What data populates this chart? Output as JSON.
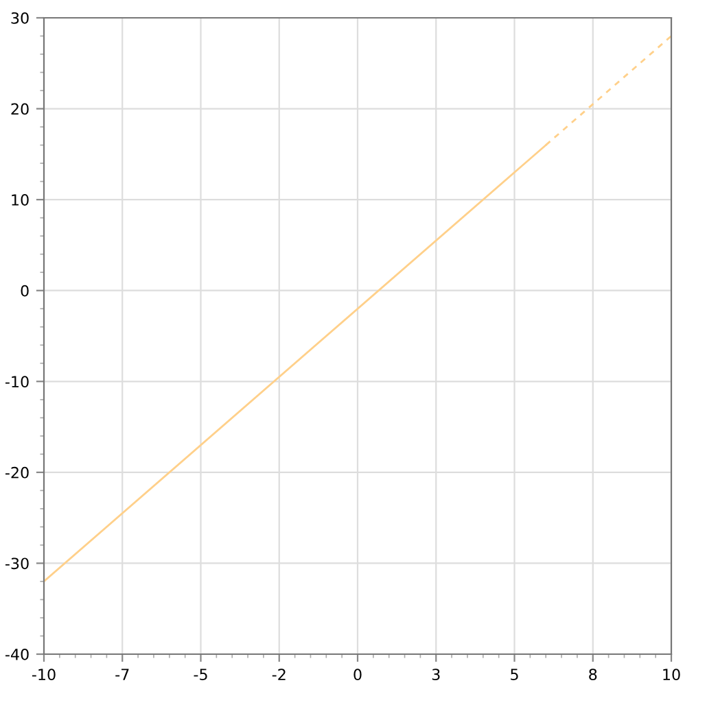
{
  "chart_data": {
    "type": "line",
    "series": [
      {
        "color": "#ffd08a",
        "x": [
          -10,
          6
        ],
        "values": [
          -32,
          16
        ],
        "line_style": "solid"
      },
      {
        "color": "#ffd08a",
        "x": [
          6,
          10
        ],
        "values": [
          16,
          28
        ],
        "line_style": "dashed"
      }
    ],
    "xlim": [
      -10,
      10
    ],
    "ylim": [
      -40,
      30
    ],
    "xticks": [
      -10,
      {
        "value": -7.5,
        "label": "-7"
      },
      -5,
      {
        "value": -2.5,
        "label": "-2"
      },
      0,
      {
        "value": 2.5,
        "label": "3"
      },
      5,
      {
        "value": 7.5,
        "label": "8"
      },
      10
    ],
    "yticks": [
      -40,
      -30,
      -20,
      -10,
      0,
      10,
      20,
      30
    ],
    "grid": true,
    "marker": "none"
  }
}
